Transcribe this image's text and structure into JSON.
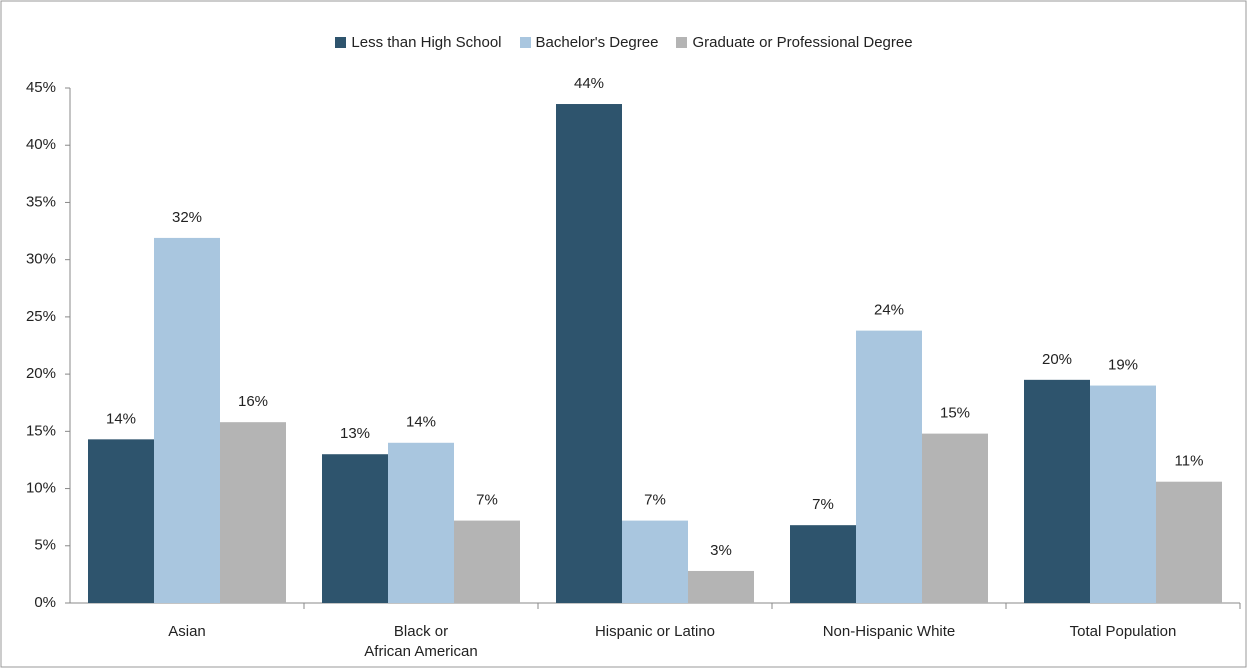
{
  "chart_data": {
    "type": "bar",
    "categories": [
      "Asian",
      "Black or\nAfrican American",
      "Hispanic or Latino",
      "Non-Hispanic White",
      "Total Population"
    ],
    "series": [
      {
        "name": "Less than High School",
        "color": "#2e546d",
        "values": [
          14.3,
          13.0,
          43.6,
          6.8,
          19.5
        ],
        "value_labels": [
          "14%",
          "13%",
          "44%",
          "7%",
          "20%"
        ]
      },
      {
        "name": "Bachelor's Degree",
        "color": "#a9c6df",
        "values": [
          31.9,
          14.0,
          7.2,
          23.8,
          19.0
        ],
        "value_labels": [
          "32%",
          "14%",
          "7%",
          "24%",
          "19%"
        ]
      },
      {
        "name": "Graduate or Professional Degree",
        "color": "#b4b4b4",
        "values": [
          15.8,
          7.2,
          2.8,
          14.8,
          10.6
        ],
        "value_labels": [
          "16%",
          "7%",
          "3%",
          "15%",
          "11%"
        ]
      }
    ],
    "ylim": [
      0,
      45
    ],
    "yticks": [
      {
        "value": 0,
        "label": "0%"
      },
      {
        "value": 5,
        "label": "5%"
      },
      {
        "value": 10,
        "label": "10%"
      },
      {
        "value": 15,
        "label": "15%"
      },
      {
        "value": 20,
        "label": "20%"
      },
      {
        "value": 25,
        "label": "25%"
      },
      {
        "value": 30,
        "label": "30%"
      },
      {
        "value": 35,
        "label": "35%"
      },
      {
        "value": 40,
        "label": "40%"
      },
      {
        "value": 45,
        "label": "45%"
      }
    ],
    "legend": "top"
  }
}
